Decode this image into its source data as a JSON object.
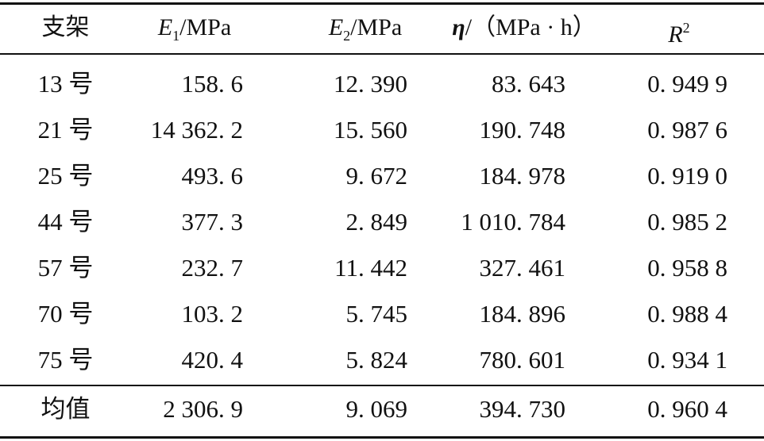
{
  "table": {
    "header": {
      "col0": "支架",
      "col1_symbol": "E",
      "col1_sub": "1",
      "col1_unit": "/MPa",
      "col2_symbol": "E",
      "col2_sub": "2",
      "col2_unit": "/MPa",
      "col3_symbol": "η",
      "col3_unit": "/（MPa · h）",
      "col4_symbol": "R",
      "col4_sup": "2"
    },
    "rows": [
      {
        "id": "13 号",
        "e1": "158. 6",
        "e2": "12. 390",
        "eta": "83. 643",
        "r2": "0. 949 9"
      },
      {
        "id": "21 号",
        "e1": "14 362. 2",
        "e2": "15. 560",
        "eta": "190. 748",
        "r2": "0. 987 6"
      },
      {
        "id": "25 号",
        "e1": "493. 6",
        "e2": "9. 672",
        "eta": "184. 978",
        "r2": "0. 919 0"
      },
      {
        "id": "44 号",
        "e1": "377. 3",
        "e2": "2. 849",
        "eta": "1 010. 784",
        "r2": "0. 985 2"
      },
      {
        "id": "57 号",
        "e1": "232. 7",
        "e2": "11. 442",
        "eta": "327. 461",
        "r2": "0. 958 8"
      },
      {
        "id": "70 号",
        "e1": "103. 2",
        "e2": "5. 745",
        "eta": "184. 896",
        "r2": "0. 988 4"
      },
      {
        "id": "75 号",
        "e1": "420. 4",
        "e2": "5. 824",
        "eta": "780. 601",
        "r2": "0. 934 1"
      }
    ],
    "mean": {
      "id": "均值",
      "e1": "2 306. 9",
      "e2": "9. 069",
      "eta": "394. 730",
      "r2": "0. 960 4"
    }
  }
}
